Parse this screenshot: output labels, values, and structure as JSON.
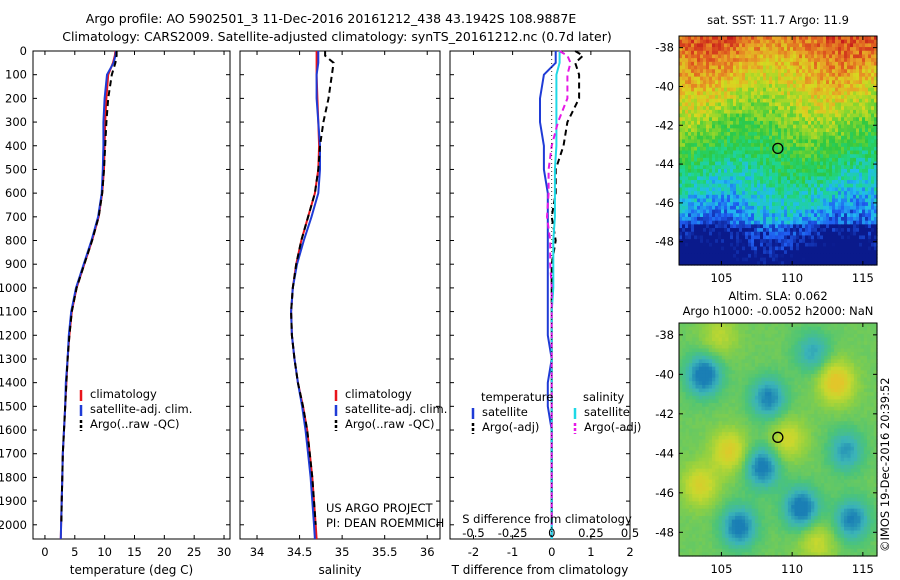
{
  "header": {
    "line1": "Argo profile: AO 5902501_3 11-Dec-2016 20161212_438 43.1942S 108.9887E",
    "line2": "Climatology: CARS2009. Satellite-adjusted climatology: synTS_20161212.nc (0.7d later)"
  },
  "chart_data": [
    {
      "type": "line",
      "xlabel": "temperature (deg C)",
      "ylabel": "",
      "xlim": [
        -2,
        31
      ],
      "ylim": [
        2060,
        0
      ],
      "xticks": [
        "0",
        "5",
        "10",
        "15",
        "20",
        "25",
        "30"
      ],
      "yticks": [
        "0",
        "100",
        "200",
        "300",
        "400",
        "500",
        "600",
        "700",
        "800",
        "900",
        "1000",
        "1100",
        "1200",
        "1300",
        "1400",
        "1500",
        "1600",
        "1700",
        "1800",
        "1900",
        "2000"
      ],
      "depth": [
        0,
        20,
        50,
        100,
        200,
        300,
        400,
        500,
        600,
        700,
        800,
        900,
        1000,
        1100,
        1200,
        1300,
        1400,
        1500,
        1600,
        1700,
        1800,
        1900,
        2000,
        2060
      ],
      "series": [
        {
          "name": "climatology",
          "color": "#e8141b",
          "dash": false,
          "values": [
            11.8,
            11.7,
            11.4,
            10.6,
            10.3,
            10.1,
            10.0,
            9.9,
            9.6,
            9.0,
            7.9,
            6.6,
            5.3,
            4.5,
            4.1,
            3.8,
            3.6,
            3.4,
            3.2,
            3.0,
            2.9,
            2.8,
            2.7,
            2.65
          ]
        },
        {
          "name": "satellite-adj. clim.",
          "color": "#1f3bd6",
          "dash": false,
          "values": [
            11.9,
            11.8,
            11.5,
            10.4,
            10.0,
            9.8,
            9.8,
            9.7,
            9.5,
            8.9,
            7.8,
            6.5,
            5.2,
            4.4,
            4.0,
            3.8,
            3.5,
            3.4,
            3.2,
            3.0,
            2.9,
            2.8,
            2.7,
            2.65
          ]
        },
        {
          "name": "Argo(..raw -QC)",
          "color": "#000000",
          "dash": true,
          "values": [
            12.0,
            12.0,
            11.8,
            11.2,
            10.6,
            10.3,
            10.1,
            9.9,
            9.6,
            9.0,
            7.9,
            6.6,
            5.3,
            4.5,
            4.1,
            3.8,
            3.6,
            3.4,
            3.2,
            3.0,
            2.9,
            2.8,
            2.75
          ]
        }
      ],
      "legend_position": "lower-right"
    },
    {
      "type": "line",
      "xlabel": "salinity",
      "ylabel": "",
      "xlim": [
        33.8,
        36.15
      ],
      "ylim": [
        2060,
        0
      ],
      "xticks": [
        "34",
        "34.5",
        "35",
        "35.5",
        "36"
      ],
      "depth": [
        0,
        20,
        50,
        100,
        200,
        300,
        400,
        500,
        600,
        700,
        800,
        900,
        1000,
        1100,
        1200,
        1300,
        1400,
        1500,
        1600,
        1700,
        1800,
        1900,
        2000,
        2060
      ],
      "series": [
        {
          "name": "climatology",
          "color": "#e8141b",
          "dash": false,
          "values": [
            34.7,
            34.7,
            34.7,
            34.7,
            34.71,
            34.72,
            34.73,
            34.72,
            34.68,
            34.6,
            34.52,
            34.46,
            34.42,
            34.4,
            34.41,
            34.44,
            34.48,
            34.54,
            34.59,
            34.62,
            34.65,
            34.67,
            34.69,
            34.7
          ]
        },
        {
          "name": "satellite-adj. clim.",
          "color": "#1f3bd6",
          "dash": false,
          "values": [
            34.72,
            34.72,
            34.72,
            34.7,
            34.7,
            34.72,
            34.74,
            34.74,
            34.72,
            34.64,
            34.55,
            34.47,
            34.42,
            34.4,
            34.41,
            34.44,
            34.48,
            34.53,
            34.57,
            34.6,
            34.63,
            34.65,
            34.67,
            34.68
          ]
        },
        {
          "name": "Argo(..raw -QC)",
          "color": "#000000",
          "dash": true,
          "values": [
            34.8,
            34.8,
            34.9,
            34.88,
            34.84,
            34.78,
            34.74,
            34.72,
            34.68,
            34.6,
            34.52,
            34.46,
            34.42,
            34.4,
            34.41,
            34.44,
            34.48,
            34.54,
            34.59,
            34.62,
            34.65,
            34.67,
            34.69
          ]
        }
      ],
      "legend_position": "lower-right",
      "annotations": [
        "US ARGO PROJECT",
        "PI: DEAN ROEMMICH"
      ]
    },
    {
      "type": "line",
      "xlabel": "T difference from climatology",
      "xlabel_top": "S difference from climatology",
      "xlim": [
        -2.6,
        2.0
      ],
      "ylim": [
        2060,
        0
      ],
      "xticks": [
        "-2",
        "-1",
        "0",
        "1",
        "2"
      ],
      "xticks_top": [
        "-0.5",
        "-0.25",
        "0",
        "0.25",
        "0.5"
      ],
      "depth": [
        0,
        20,
        50,
        100,
        200,
        300,
        400,
        500,
        600,
        700,
        800,
        900,
        1000,
        1100,
        1200,
        1300,
        1400,
        1500,
        1600,
        1700,
        1800,
        1900,
        2000,
        2060
      ],
      "series": [
        {
          "name": "temperature satellite",
          "color": "#1f3bd6",
          "dash": false,
          "values": [
            0.1,
            0.1,
            0.1,
            -0.2,
            -0.3,
            -0.3,
            -0.2,
            -0.2,
            -0.1,
            -0.1,
            -0.1,
            -0.1,
            -0.1,
            -0.1,
            -0.1,
            0.0,
            -0.1,
            -0.1,
            0.0,
            0.0,
            0.0,
            0.0,
            0.0,
            0.0
          ]
        },
        {
          "name": "temperature Argo(-adj)",
          "color": "#000000",
          "dash": true,
          "values": [
            0.6,
            0.8,
            0.6,
            0.7,
            0.7,
            0.4,
            0.3,
            0.1,
            0.1,
            0.0,
            0.1,
            0.0,
            0.0,
            0.0,
            0.0,
            0.0,
            0.0,
            0.0,
            0.0,
            0.0,
            0.0,
            0.0,
            0.0
          ]
        },
        {
          "name": "salinity satellite",
          "color": "#1ed8e6",
          "dash": false,
          "values": [
            0.05,
            0.05,
            0.05,
            0.03,
            0.03,
            0.03,
            0.03,
            0.02,
            0.02,
            0.02,
            0.01,
            0.01,
            0.01,
            0.0,
            0.0,
            0.0,
            0.0,
            0.0,
            0.0,
            0.0,
            0.0,
            0.0,
            0.0,
            0.0
          ]
        },
        {
          "name": "salinity Argo(-adj)",
          "color": "#e619e6",
          "dash": true,
          "values": [
            0.05,
            0.1,
            0.12,
            0.1,
            0.1,
            0.04,
            0.0,
            -0.02,
            -0.02,
            -0.03,
            -0.01,
            -0.01,
            0.0,
            0.0,
            0.0,
            0.0,
            0.0,
            0.0,
            0.0,
            0.0,
            0.0,
            0.0,
            0.0
          ]
        }
      ],
      "legend_columns": [
        "temperature",
        "salinity"
      ],
      "legend_entries": [
        {
          "label": "satellite",
          "color": "#1f3bd6",
          "dash": false
        },
        {
          "label": "Argo(-adj)",
          "color": "#000000",
          "dash": true
        },
        {
          "label": "satellite",
          "color": "#1ed8e6",
          "dash": false
        },
        {
          "label": "Argo(-adj)",
          "color": "#e619e6",
          "dash": true
        }
      ]
    },
    {
      "type": "heatmap",
      "title": "sat. SST: 11.7  Argo: 11.9",
      "xlim": [
        102,
        116
      ],
      "ylim": [
        -49.2,
        -37.4
      ],
      "xticks": [
        "105",
        "110",
        "115"
      ],
      "yticks": [
        "-38",
        "-40",
        "-42",
        "-44",
        "-46",
        "-48"
      ],
      "marker": {
        "lon": 108.99,
        "lat": -43.19
      },
      "colormap": [
        "#0a1a8c",
        "#1f5cf0",
        "#21bcf0",
        "#1fd68a",
        "#2ec843",
        "#84d62f",
        "#d8d820",
        "#e8a226",
        "#df5a20",
        "#c2121a",
        "#6a0c1a"
      ]
    },
    {
      "type": "heatmap",
      "title": "Altim. SLA: 0.062",
      "subtitle": "Argo h1000: -0.0052  h2000: NaN",
      "xlim": [
        102,
        116
      ],
      "ylim": [
        -49.2,
        -37.4
      ],
      "xticks": [
        "105",
        "110",
        "115"
      ],
      "yticks": [
        "-38",
        "-40",
        "-42",
        "-44",
        "-46",
        "-48"
      ],
      "marker": {
        "lon": 108.99,
        "lat": -43.19
      },
      "colormap": [
        "#1a7fb5",
        "#3bb4b8",
        "#4cc478",
        "#8fd042",
        "#c8d82e",
        "#e2c62a"
      ]
    }
  ],
  "footer": {
    "watermark": "©IMOS 19-Dec-2016 20:39:52"
  }
}
